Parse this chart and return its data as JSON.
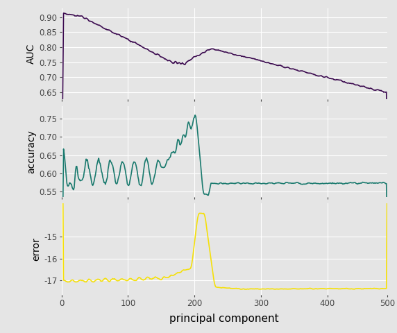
{
  "xlabel": "principal component",
  "background_color": "#e5e5e5",
  "grid_color": "#ffffff",
  "auc_color": "#3b0a4f",
  "accuracy_color": "#1a7a6e",
  "error_color": "#f5e00a",
  "line_width": 1.2,
  "xlim": [
    0,
    490
  ],
  "auc_ylim": [
    0.625,
    0.93
  ],
  "accuracy_ylim": [
    0.535,
    0.785
  ],
  "error_ylim": [
    -17.65,
    -13.5
  ],
  "auc_yticks": [
    0.65,
    0.7,
    0.75,
    0.8,
    0.85,
    0.9
  ],
  "accuracy_yticks": [
    0.55,
    0.6,
    0.65,
    0.7,
    0.75
  ],
  "error_yticks": [
    -17,
    -16,
    -15
  ],
  "xticks": [
    0,
    100,
    200,
    300,
    400
  ]
}
